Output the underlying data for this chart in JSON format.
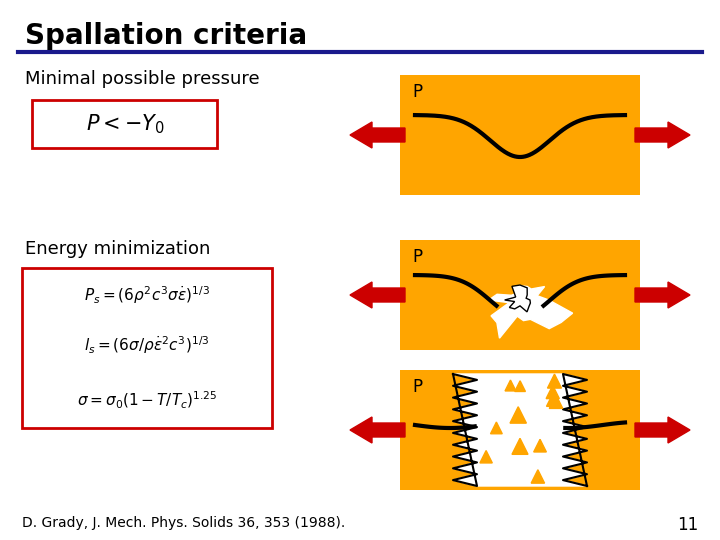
{
  "title": "Spallation criteria",
  "title_fontsize": 20,
  "title_fontweight": "bold",
  "bg_color": "#ffffff",
  "line_color": "#1a1a8c",
  "orange_color": "#FFA500",
  "red_color": "#CC0000",
  "text_minimal": "Minimal possible pressure",
  "text_energy": "Energy minimization",
  "citation": "D. Grady, J. Mech. Phys. Solids 36, 353 (1988).",
  "page_num": "11",
  "eq1": "$P_s = (6\\rho^2 c^3 \\sigma \\dot{\\varepsilon})^{1/3}$",
  "eq2": "$l_s = (6\\sigma / \\rho \\dot{\\varepsilon}^2 c^3)^{1/3}$",
  "eq3": "$\\sigma = \\sigma_0(1 - T/T_c)^{1.25}$"
}
